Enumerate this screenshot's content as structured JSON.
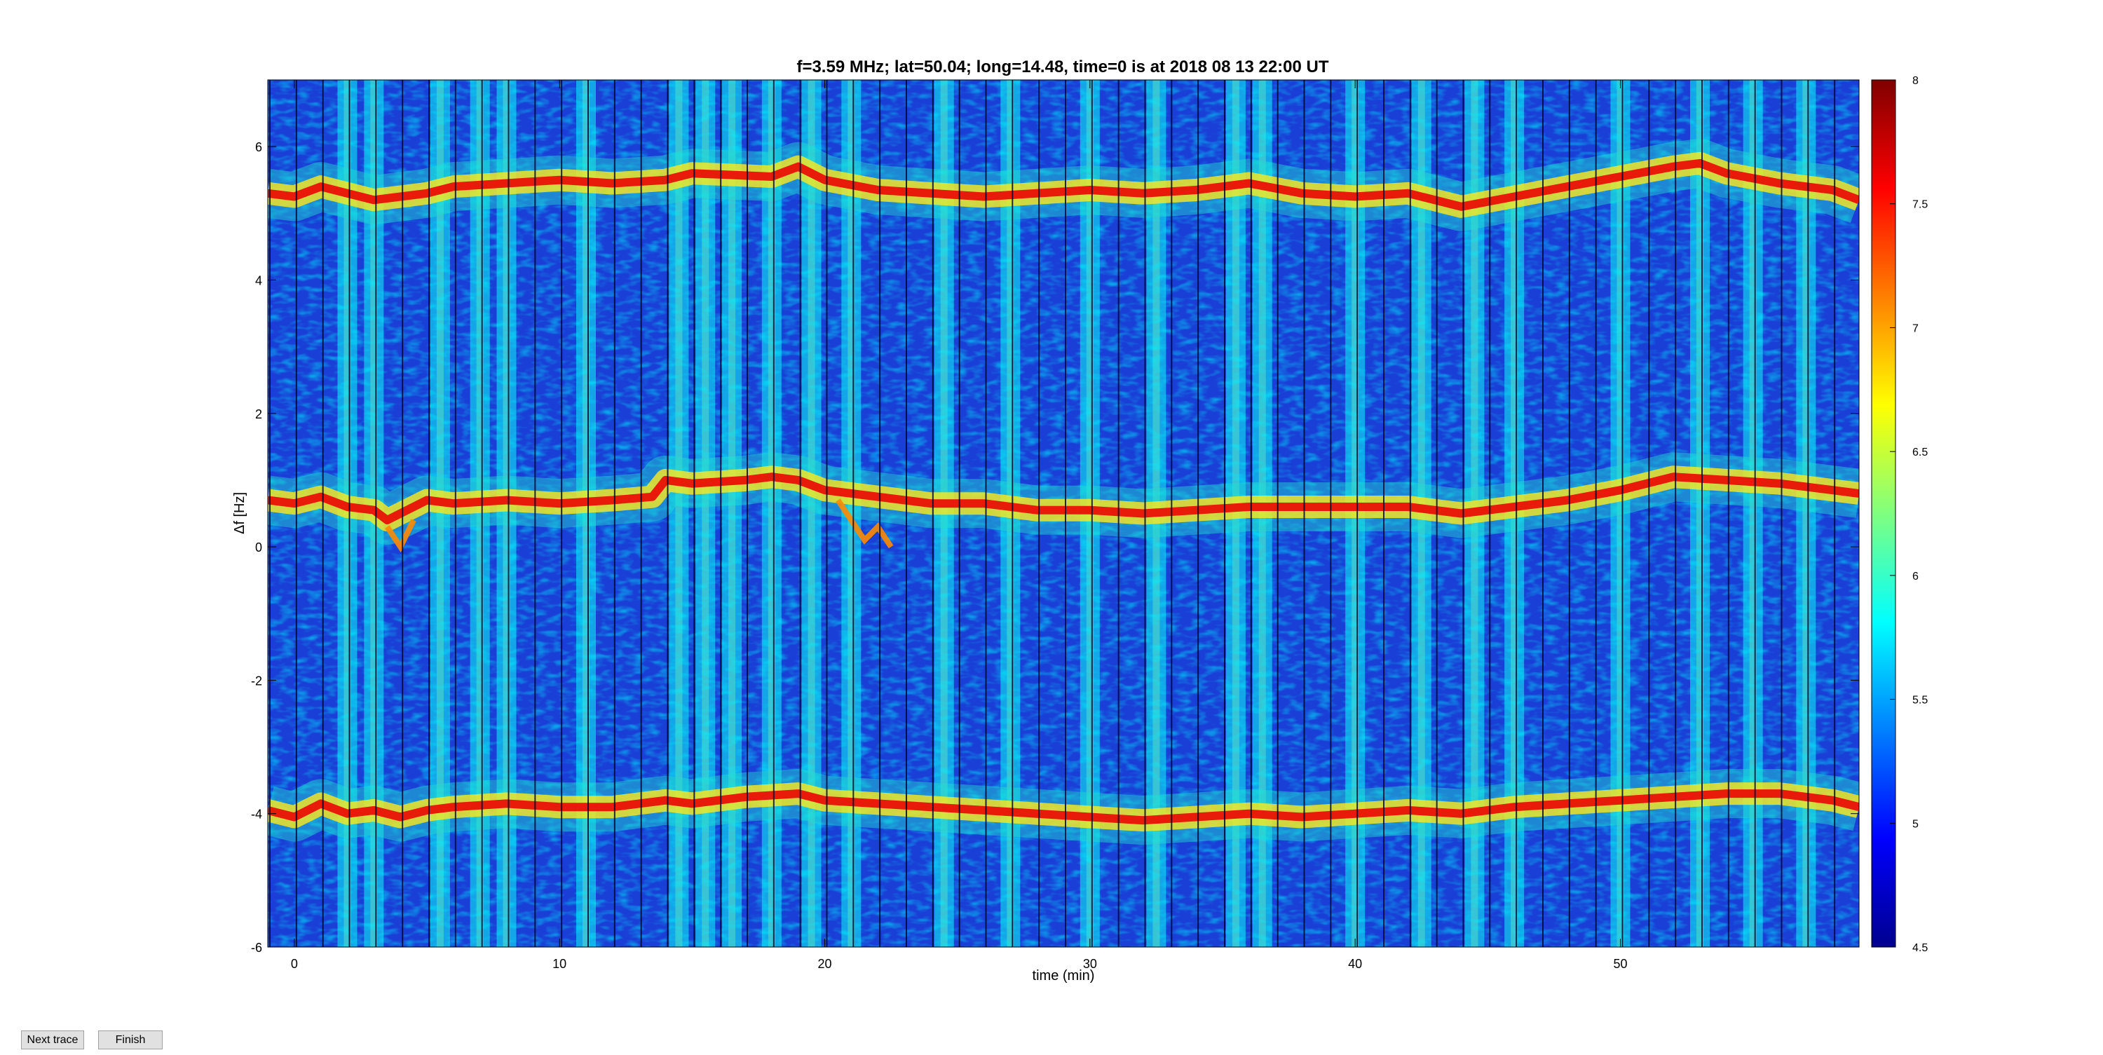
{
  "buttons": {
    "next_label": "Next trace",
    "finish_label": "Finish"
  },
  "chart_data": {
    "type": "heatmap",
    "title": "f=3.59 MHz;  lat=50.04; long=14.48, time=0 is at 2018 08 13 22:00 UT",
    "xlabel": "time (min)",
    "ylabel": "Δf [Hz]",
    "xlim": [
      -1,
      59
    ],
    "ylim": [
      -6,
      7
    ],
    "xticks": [
      0,
      10,
      20,
      30,
      40,
      50
    ],
    "yticks": [
      -6,
      -4,
      -2,
      0,
      2,
      4,
      6
    ],
    "colormap": "jet",
    "clim": [
      4.5,
      8
    ],
    "colorbar_ticks": [
      4.5,
      5,
      5.5,
      6,
      6.5,
      7,
      7.5,
      8
    ],
    "grid": false,
    "traces": [
      {
        "name": "upper",
        "x": [
          -1,
          0,
          1,
          2,
          3,
          4,
          5,
          6,
          8,
          10,
          12,
          14,
          15,
          18,
          19,
          20,
          22,
          24,
          26,
          28,
          30,
          32,
          34,
          36,
          38,
          40,
          42,
          44,
          46,
          48,
          50,
          52,
          53,
          54,
          56,
          58,
          59
        ],
        "y": [
          5.3,
          5.25,
          5.4,
          5.3,
          5.2,
          5.25,
          5.3,
          5.4,
          5.45,
          5.5,
          5.45,
          5.5,
          5.6,
          5.55,
          5.7,
          5.5,
          5.35,
          5.3,
          5.25,
          5.3,
          5.35,
          5.3,
          5.35,
          5.45,
          5.3,
          5.25,
          5.3,
          5.1,
          5.25,
          5.4,
          5.55,
          5.7,
          5.75,
          5.6,
          5.45,
          5.35,
          5.2
        ]
      },
      {
        "name": "middle",
        "x": [
          -1,
          0,
          1,
          2,
          3,
          3.5,
          4,
          5,
          6,
          8,
          10,
          12,
          13.5,
          14,
          15,
          17,
          18,
          19,
          20,
          22,
          24,
          26,
          28,
          30,
          32,
          34,
          36,
          38,
          40,
          42,
          44,
          46,
          48,
          50,
          52,
          54,
          56,
          58,
          59
        ],
        "y": [
          0.7,
          0.65,
          0.75,
          0.6,
          0.55,
          0.4,
          0.5,
          0.7,
          0.65,
          0.7,
          0.65,
          0.7,
          0.75,
          1.0,
          0.95,
          1.0,
          1.05,
          1.0,
          0.85,
          0.75,
          0.65,
          0.65,
          0.55,
          0.55,
          0.5,
          0.55,
          0.6,
          0.6,
          0.6,
          0.6,
          0.5,
          0.6,
          0.7,
          0.85,
          1.05,
          1.0,
          0.95,
          0.85,
          0.8
        ]
      },
      {
        "name": "lower",
        "x": [
          -1,
          0,
          1,
          2,
          3,
          4,
          5,
          6,
          8,
          10,
          12,
          13,
          14,
          15,
          17,
          19,
          20,
          22,
          24,
          26,
          28,
          30,
          32,
          34,
          36,
          38,
          40,
          42,
          44,
          46,
          48,
          50,
          52,
          54,
          56,
          58,
          59
        ],
        "y": [
          -3.95,
          -4.05,
          -3.85,
          -4.0,
          -3.95,
          -4.05,
          -3.95,
          -3.9,
          -3.85,
          -3.9,
          -3.9,
          -3.85,
          -3.8,
          -3.85,
          -3.75,
          -3.7,
          -3.8,
          -3.85,
          -3.9,
          -3.95,
          -4.0,
          -4.05,
          -4.1,
          -4.05,
          -4.0,
          -4.05,
          -4.0,
          -3.95,
          -4.0,
          -3.9,
          -3.85,
          -3.8,
          -3.75,
          -3.7,
          -3.7,
          -3.8,
          -3.9
        ]
      }
    ],
    "secondary_features": [
      {
        "x": [
          20.5,
          21,
          21.5,
          22,
          22.5
        ],
        "y": [
          0.7,
          0.4,
          0.1,
          0.3,
          0.0
        ]
      },
      {
        "x": [
          3.5,
          4,
          4.5
        ],
        "y": [
          0.3,
          0.0,
          0.4
        ]
      }
    ],
    "bright_columns": [
      2.0,
      3.0,
      5.5,
      7.0,
      8.0,
      11.0,
      14.5,
      15.5,
      16.5,
      18.0,
      19.5,
      21.0,
      24.5,
      27.0,
      30.0,
      32.5,
      35.5,
      36.5,
      40.0,
      42.5,
      44.5,
      46.0,
      50.0,
      53.0,
      55.0,
      57.0
    ]
  }
}
